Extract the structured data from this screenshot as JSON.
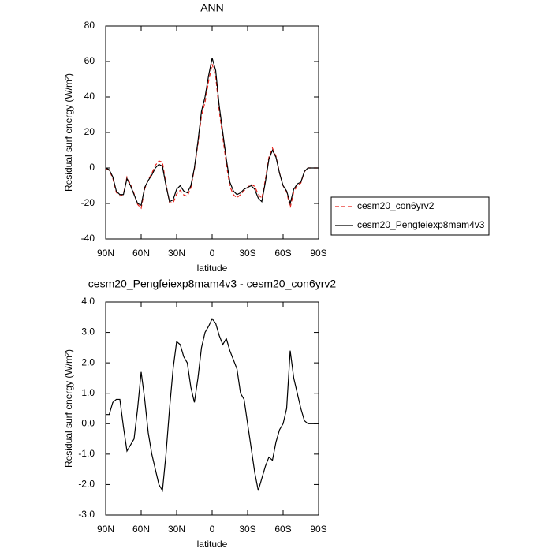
{
  "chart_data": [
    {
      "type": "line",
      "title": "ANN",
      "x_label": "latitude",
      "y_label": "Residual surf energy (W/m²)",
      "x": [
        90,
        87,
        84,
        81,
        78,
        75,
        72,
        69,
        66,
        63,
        60,
        57,
        54,
        51,
        48,
        45,
        42,
        39,
        36,
        33,
        30,
        27,
        24,
        21,
        18,
        15,
        12,
        9,
        6,
        3,
        0,
        -3,
        -6,
        -9,
        -12,
        -15,
        -18,
        -21,
        -24,
        -27,
        -30,
        -33,
        -36,
        -39,
        -42,
        -45,
        -48,
        -51,
        -54,
        -57,
        -60,
        -63,
        -66,
        -69,
        -72,
        -75,
        -78,
        -81,
        -84,
        -87,
        -90
      ],
      "series": [
        {
          "name": "cesm20_con6yrv2",
          "color": "#e8211a",
          "line_style": "dashed",
          "values": [
            -0.3,
            -1.3,
            -5.7,
            -13.8,
            -15.8,
            -14.9,
            -5.1,
            -9.3,
            -14.5,
            -20.5,
            -22.7,
            -11.8,
            -6.7,
            -3,
            1.5,
            4,
            3.2,
            -9,
            -19.5,
            -19.8,
            -14.7,
            -12.6,
            -15.2,
            -16,
            -11.2,
            -0.7,
            13.5,
            29.5,
            37,
            48.8,
            58.5,
            51.7,
            32.1,
            17.4,
            2.2,
            -10.4,
            -15.1,
            -16.8,
            -15,
            -12.8,
            -11,
            -9.2,
            -10.4,
            -14.8,
            -17.2,
            -6.6,
            6.1,
            11.2,
            6.6,
            -2.8,
            -10,
            -13.5,
            -22.4,
            -13.5,
            -10,
            -8.5,
            -2.1,
            0,
            0,
            0,
            0
          ]
        },
        {
          "name": "cesm20_Pengfeiexp8mam4v3",
          "color": "#000000",
          "line_style": "solid",
          "values": [
            0,
            -1,
            -5,
            -13,
            -15,
            -15,
            -6,
            -10,
            -15,
            -20,
            -21,
            -11,
            -7,
            -4,
            0,
            2,
            1,
            -10,
            -19,
            -18,
            -12,
            -10,
            -13,
            -14,
            -10,
            0,
            15,
            32,
            40,
            52,
            62,
            55,
            35,
            20,
            5,
            -8,
            -13,
            -15,
            -14,
            -12,
            -11,
            -10,
            -12,
            -17,
            -19,
            -8,
            5,
            10,
            6,
            -3,
            -10,
            -13,
            -20,
            -12,
            -9,
            -8,
            -2,
            0,
            0,
            0,
            0
          ]
        }
      ],
      "xlim": [
        90,
        -90
      ],
      "xticks": [
        {
          "value": 90,
          "label": "90N"
        },
        {
          "value": 60,
          "label": "60N"
        },
        {
          "value": 30,
          "label": "30N"
        },
        {
          "value": 0,
          "label": "0"
        },
        {
          "value": -30,
          "label": "30S"
        },
        {
          "value": -60,
          "label": "60S"
        },
        {
          "value": -90,
          "label": "90S"
        }
      ],
      "ylim": [
        -40,
        80
      ],
      "yticks": [
        -40,
        -20,
        0,
        20,
        40,
        60,
        80
      ],
      "legend": "right"
    },
    {
      "type": "line",
      "title": "cesm20_Pengfeiexp8mam4v3 - cesm20_con6yrv2",
      "x_label": "latitude",
      "y_label": "Residual surf energy (W/m²)",
      "x": [
        90,
        87,
        84,
        81,
        78,
        75,
        72,
        69,
        66,
        63,
        60,
        57,
        54,
        51,
        48,
        45,
        42,
        39,
        36,
        33,
        30,
        27,
        24,
        21,
        18,
        15,
        12,
        9,
        6,
        3,
        0,
        -3,
        -6,
        -9,
        -12,
        -15,
        -18,
        -21,
        -24,
        -27,
        -30,
        -33,
        -36,
        -39,
        -42,
        -45,
        -48,
        -51,
        -54,
        -57,
        -60,
        -63,
        -66,
        -69,
        -72,
        -75,
        -78,
        -81,
        -84,
        -87,
        -90
      ],
      "series": [
        {
          "color": "#000000",
          "line_style": "solid",
          "values": [
            0.3,
            0.3,
            0.7,
            0.8,
            0.8,
            -0.1,
            -0.9,
            -0.7,
            -0.5,
            0.5,
            1.7,
            0.8,
            -0.3,
            -1.0,
            -1.5,
            -2.0,
            -2.2,
            -1.0,
            0.5,
            1.8,
            2.7,
            2.6,
            2.2,
            2.0,
            1.2,
            0.7,
            1.5,
            2.5,
            3.0,
            3.2,
            3.45,
            3.3,
            2.9,
            2.6,
            2.8,
            2.4,
            2.1,
            1.8,
            1.0,
            0.8,
            0.0,
            -0.8,
            -1.6,
            -2.2,
            -1.8,
            -1.4,
            -1.1,
            -1.2,
            -0.6,
            -0.2,
            0.0,
            0.5,
            2.4,
            1.5,
            1.0,
            0.5,
            0.1,
            0.0,
            0.0,
            0.0,
            0.0
          ]
        }
      ],
      "xlim": [
        90,
        -90
      ],
      "xticks": [
        {
          "value": 90,
          "label": "90N"
        },
        {
          "value": 60,
          "label": "60N"
        },
        {
          "value": 30,
          "label": "30N"
        },
        {
          "value": 0,
          "label": "0"
        },
        {
          "value": -30,
          "label": "30S"
        },
        {
          "value": -60,
          "label": "60S"
        },
        {
          "value": -90,
          "label": "90S"
        }
      ],
      "ylim": [
        -3,
        4
      ],
      "yticks": [
        {
          "value": -3,
          "label": "-3.0"
        },
        {
          "value": -2,
          "label": "-2.0"
        },
        {
          "value": -1,
          "label": "-1.0"
        },
        {
          "value": 0,
          "label": "0.0"
        },
        {
          "value": 1,
          "label": "1.0"
        },
        {
          "value": 2,
          "label": "2.0"
        },
        {
          "value": 3,
          "label": "3.0"
        },
        {
          "value": 4,
          "label": "4.0"
        }
      ]
    }
  ]
}
